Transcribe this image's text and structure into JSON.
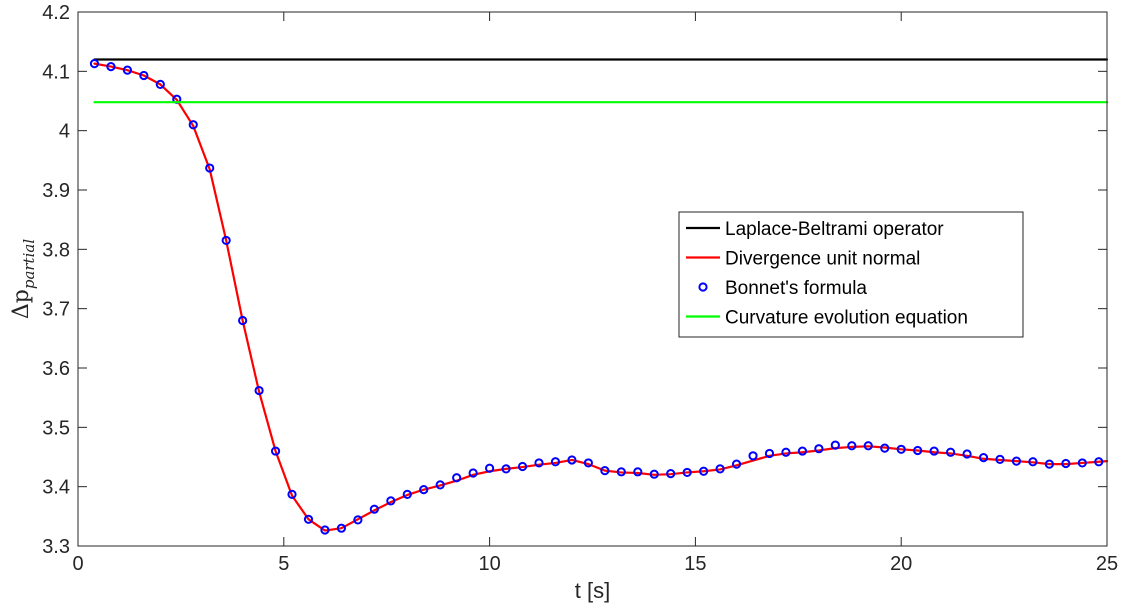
{
  "chart_data": {
    "type": "line",
    "xlabel": "t [s]",
    "ylabel": {
      "symbol": "Δp",
      "subscript": "partial"
    },
    "xlim": [
      0,
      25
    ],
    "ylim": [
      3.3,
      4.2
    ],
    "x_ticks": [
      0,
      5,
      10,
      15,
      20,
      25
    ],
    "y_ticks": [
      3.3,
      3.4,
      3.5,
      3.6,
      3.7,
      3.8,
      3.9,
      4,
      4.1,
      4.2
    ],
    "x_tick_labels": [
      "0",
      "5",
      "10",
      "15",
      "20",
      "25"
    ],
    "y_tick_labels": [
      "3.3",
      "3.4",
      "3.5",
      "3.6",
      "3.7",
      "3.8",
      "3.9",
      "4",
      "4.1",
      "4.2"
    ],
    "grid": false,
    "legend_position": "right",
    "series": [
      {
        "name": "Laplace-Beltrami operator",
        "style": "line",
        "color": "#000000",
        "x": [
          0.4,
          25
        ],
        "y": [
          4.12,
          4.12
        ]
      },
      {
        "name": "Divergence unit normal",
        "style": "line",
        "color": "#ff0000",
        "x": [
          0.4,
          0.8,
          1.2,
          1.6,
          2.0,
          2.4,
          2.8,
          3.2,
          3.6,
          4.0,
          4.4,
          4.8,
          5.2,
          5.6,
          6.0,
          6.4,
          6.8,
          7.2,
          7.6,
          8.0,
          8.4,
          8.8,
          9.2,
          9.6,
          10.0,
          10.4,
          10.8,
          11.2,
          11.6,
          12.0,
          12.4,
          12.8,
          13.2,
          13.6,
          14.0,
          14.4,
          14.8,
          15.2,
          15.6,
          16.0,
          16.4,
          16.8,
          17.2,
          17.6,
          18.0,
          18.4,
          18.8,
          19.2,
          19.6,
          20.0,
          20.4,
          20.8,
          21.2,
          21.6,
          22.0,
          22.4,
          22.8,
          23.2,
          23.6,
          24.0,
          24.4,
          24.8,
          25.0
        ],
        "y": [
          4.113,
          4.108,
          4.102,
          4.093,
          4.078,
          4.052,
          4.008,
          3.935,
          3.815,
          3.68,
          3.56,
          3.46,
          3.385,
          3.345,
          3.326,
          3.33,
          3.345,
          3.36,
          3.374,
          3.386,
          3.395,
          3.402,
          3.41,
          3.42,
          3.426,
          3.43,
          3.433,
          3.437,
          3.44,
          3.445,
          3.438,
          3.427,
          3.424,
          3.423,
          3.42,
          3.421,
          3.424,
          3.426,
          3.429,
          3.436,
          3.444,
          3.452,
          3.456,
          3.458,
          3.461,
          3.465,
          3.467,
          3.468,
          3.466,
          3.463,
          3.461,
          3.458,
          3.456,
          3.452,
          3.447,
          3.445,
          3.443,
          3.441,
          3.438,
          3.438,
          3.44,
          3.442,
          3.443
        ]
      },
      {
        "name": "Bonnet's formula",
        "style": "markers",
        "marker": "circle",
        "color": "#0000ff",
        "x": [
          0.4,
          0.8,
          1.2,
          1.6,
          2.0,
          2.4,
          2.8,
          3.2,
          3.6,
          4.0,
          4.4,
          4.8,
          5.2,
          5.6,
          6.0,
          6.4,
          6.8,
          7.2,
          7.6,
          8.0,
          8.4,
          8.8,
          9.2,
          9.6,
          10.0,
          10.4,
          10.8,
          11.2,
          11.6,
          12.0,
          12.4,
          12.8,
          13.2,
          13.6,
          14.0,
          14.4,
          14.8,
          15.2,
          15.6,
          16.0,
          16.4,
          16.8,
          17.2,
          17.6,
          18.0,
          18.4,
          18.8,
          19.2,
          19.6,
          20.0,
          20.4,
          20.8,
          21.2,
          21.6,
          22.0,
          22.4,
          22.8,
          23.2,
          23.6,
          24.0,
          24.4,
          24.8
        ],
        "y": [
          4.113,
          4.108,
          4.102,
          4.093,
          4.078,
          4.053,
          4.01,
          3.937,
          3.815,
          3.68,
          3.562,
          3.46,
          3.387,
          3.345,
          3.327,
          3.33,
          3.344,
          3.362,
          3.376,
          3.387,
          3.395,
          3.403,
          3.415,
          3.423,
          3.431,
          3.43,
          3.434,
          3.44,
          3.442,
          3.445,
          3.44,
          3.427,
          3.425,
          3.425,
          3.421,
          3.422,
          3.424,
          3.426,
          3.43,
          3.438,
          3.452,
          3.456,
          3.458,
          3.46,
          3.464,
          3.47,
          3.469,
          3.469,
          3.465,
          3.463,
          3.461,
          3.46,
          3.458,
          3.455,
          3.449,
          3.446,
          3.443,
          3.442,
          3.438,
          3.439,
          3.44,
          3.442
        ]
      },
      {
        "name": "Curvature evolution equation",
        "style": "line",
        "color": "#00ff00",
        "x": [
          0.4,
          25
        ],
        "y": [
          4.048,
          4.048
        ]
      }
    ]
  }
}
